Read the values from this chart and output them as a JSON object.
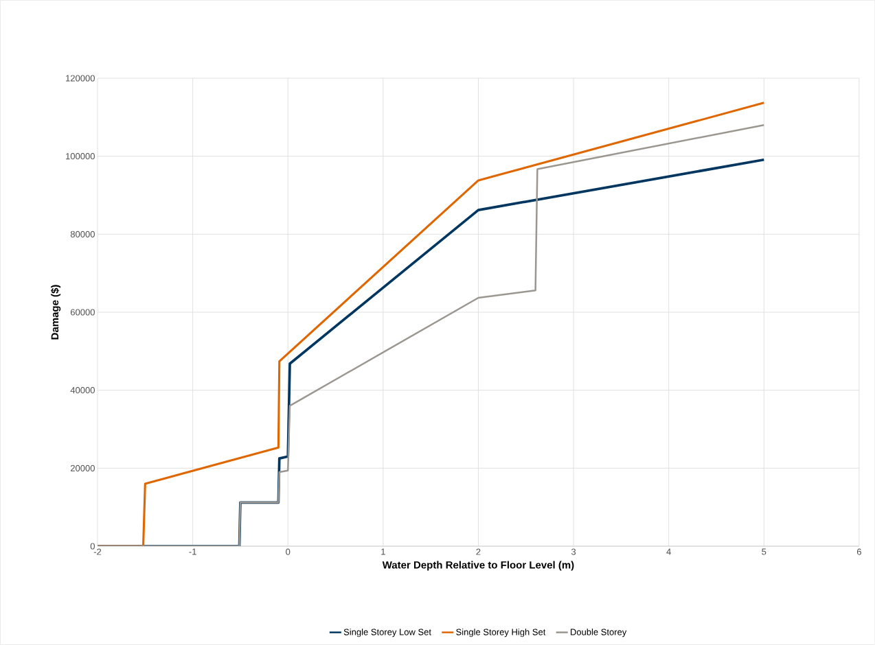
{
  "chart_data": {
    "type": "line",
    "xlabel": "Water Depth Relative to Floor Level (m)",
    "ylabel": "Damage ($)",
    "xlim": [
      -2,
      6
    ],
    "xticks": [
      -2,
      -1,
      0,
      1,
      2,
      3,
      4,
      5,
      6
    ],
    "ylim": [
      0,
      120000
    ],
    "yticks": [
      0,
      20000,
      40000,
      60000,
      80000,
      100000,
      120000
    ],
    "grid": true,
    "legend": "bottom",
    "marker": "none",
    "series": [
      {
        "name": "Single Storey Low Set",
        "color": "#003660",
        "x": [
          -2,
          -0.51,
          -0.5,
          -0.1,
          -0.09,
          0,
          0.02,
          2,
          5
        ],
        "values": [
          0,
          0,
          11200,
          11200,
          22500,
          23000,
          46800,
          86200,
          99100
        ]
      },
      {
        "name": "Single Storey High Set",
        "color": "#e06600",
        "x": [
          -2,
          -1.52,
          -1.5,
          -0.1,
          -0.09,
          2,
          5
        ],
        "values": [
          0,
          0,
          16000,
          25300,
          47400,
          93800,
          113700
        ]
      },
      {
        "name": "Double Storey",
        "color": "#9b9690",
        "x": [
          -2,
          -0.51,
          -0.5,
          -0.1,
          -0.09,
          0,
          0.02,
          2,
          2.6,
          2.62,
          5
        ],
        "values": [
          0,
          0,
          11200,
          11200,
          19000,
          19400,
          36000,
          63700,
          65600,
          96700,
          108000
        ]
      }
    ]
  }
}
